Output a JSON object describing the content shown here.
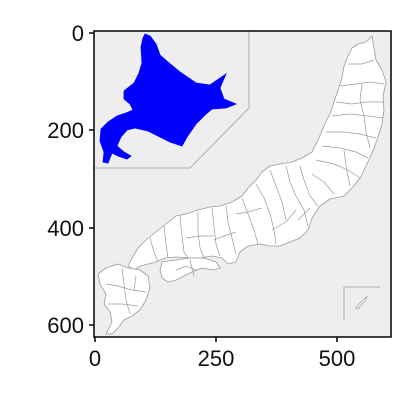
{
  "colors": {
    "map_background": "#eeeeee",
    "prefecture_fill": "#ffffff",
    "border": "#9a9a9a",
    "highlight": "#0000ff",
    "axis": "#000000"
  },
  "map": {
    "highlighted_region": "Hokkaido",
    "inset_region": "Okinawa"
  },
  "axes": {
    "x_ticks": [
      "0",
      "250",
      "500"
    ],
    "y_ticks": [
      "0",
      "200",
      "400",
      "600"
    ]
  }
}
